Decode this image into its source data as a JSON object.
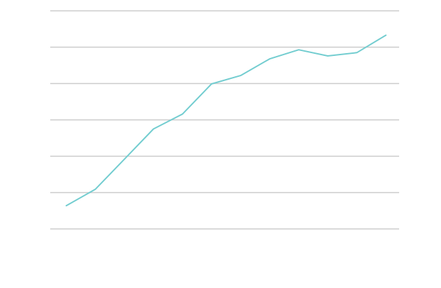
{
  "chart_data": {
    "type": "line",
    "title": "",
    "xlabel": "",
    "ylabel": "",
    "grid": true,
    "ylim": [
      0,
      6
    ],
    "x": [
      1,
      2,
      3,
      4,
      5,
      6,
      7,
      8,
      9,
      10,
      11,
      12
    ],
    "series": [
      {
        "values": [
          0.63,
          1.08,
          1.91,
          2.74,
          3.15,
          3.98,
          4.21,
          4.67,
          4.92,
          4.75,
          4.84,
          5.32
        ],
        "color": "#73cdd0"
      }
    ]
  },
  "colors": {
    "grid": "#cccccc",
    "line": "#73cdd0",
    "background": "#ffffff"
  }
}
